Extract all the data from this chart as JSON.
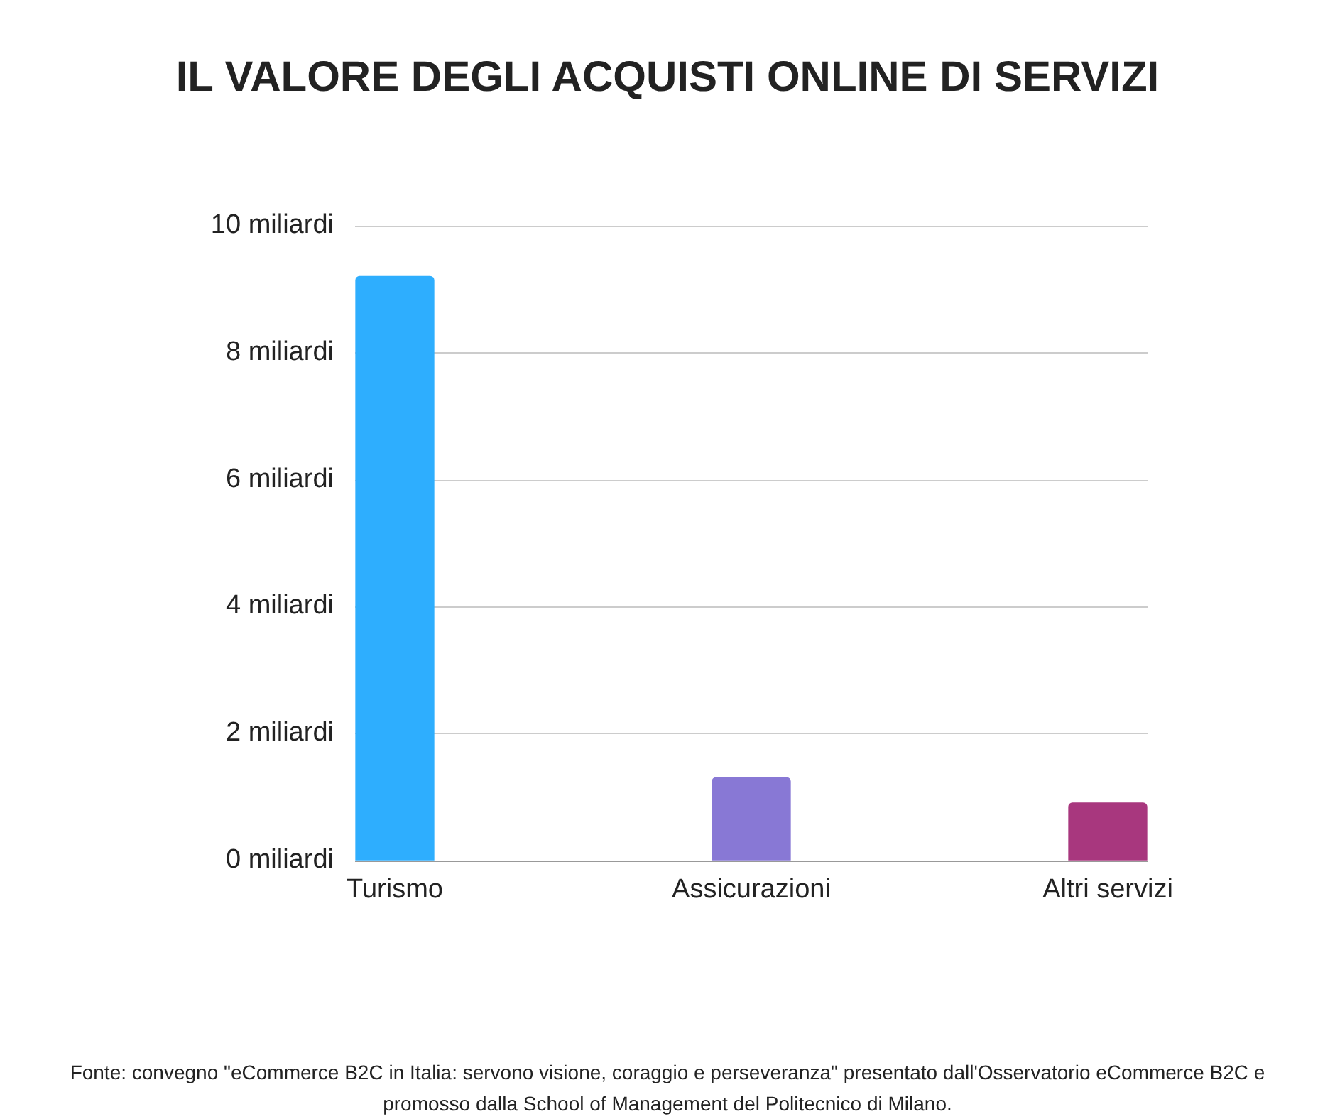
{
  "chart_data": {
    "type": "bar",
    "title": "IL VALORE DEGLI ACQUISTI ONLINE DI SERVIZI",
    "categories": [
      "Turismo",
      "Assicurazioni",
      "Altri servizi"
    ],
    "values": [
      9.2,
      1.3,
      0.9
    ],
    "colors": [
      "#2eaefe",
      "#8878d5",
      "#a8377e"
    ],
    "ylim": [
      0,
      10
    ],
    "yticks": [
      {
        "value": 0,
        "label": "0 miliardi"
      },
      {
        "value": 2,
        "label": "2 miliardi"
      },
      {
        "value": 4,
        "label": "4 miliardi"
      },
      {
        "value": 6,
        "label": "6 miliardi"
      },
      {
        "value": 8,
        "label": "8 miliardi"
      },
      {
        "value": 10,
        "label": "10 miliardi"
      }
    ],
    "grid": "y",
    "legend": false,
    "annotations": [
      "Fonte: convegno \"eCommerce B2C in Italia: servono visione, coraggio e perseveranza\" presentato dall'Osservatorio eCommerce B2C e promosso dalla School of Management del Politecnico di Milano."
    ]
  }
}
